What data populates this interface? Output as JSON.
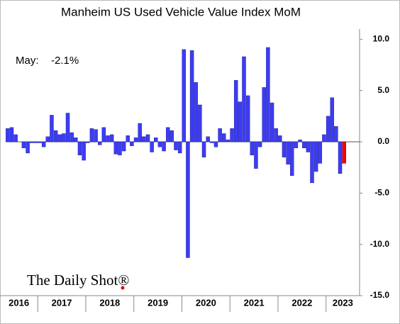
{
  "chart_data": {
    "type": "bar",
    "title": "Manheim US Used Vehicle Value Index MoM",
    "annotation_label": "May:",
    "annotation_value": "-2.1%",
    "logo": "The Daily Shot®",
    "color": "#3c3cf5",
    "highlight_color": "#ff0000",
    "highlight_index": 84,
    "categories": [
      "2016",
      null,
      null,
      null,
      null,
      null,
      null,
      null,
      "2017",
      null,
      null,
      null,
      null,
      null,
      null,
      null,
      null,
      null,
      null,
      null,
      "2018",
      null,
      null,
      null,
      null,
      null,
      null,
      null,
      null,
      null,
      null,
      null,
      "2019",
      null,
      null,
      null,
      null,
      null,
      null,
      null,
      null,
      null,
      null,
      null,
      "2020",
      null,
      null,
      null,
      null,
      null,
      null,
      null,
      null,
      null,
      null,
      null,
      "2021",
      null,
      null,
      null,
      null,
      null,
      null,
      null,
      null,
      null,
      null,
      null,
      "2022",
      null,
      null,
      null,
      null,
      null,
      null,
      null,
      null,
      null,
      null,
      null,
      "2023",
      null,
      null,
      null,
      null
    ],
    "values": [
      1.3,
      1.4,
      0.7,
      0.0,
      -0.6,
      -1.1,
      -0.1,
      -0.1,
      -0.1,
      -0.5,
      0.5,
      2.6,
      1.1,
      0.7,
      0.8,
      2.8,
      0.9,
      0.4,
      -1.3,
      -1.8,
      -0.1,
      1.3,
      1.2,
      -0.3,
      1.4,
      0.6,
      0.7,
      -1.2,
      -1.3,
      -0.9,
      0.6,
      -0.4,
      0.4,
      1.8,
      0.5,
      0.7,
      -1.0,
      0.4,
      -0.5,
      -0.9,
      1.4,
      1.1,
      -0.8,
      -1.1,
      9.0,
      -11.3,
      8.9,
      5.8,
      3.6,
      -1.5,
      0.5,
      -0.1,
      -0.5,
      1.3,
      0.8,
      0.2,
      1.3,
      6.0,
      3.9,
      8.3,
      4.5,
      -1.3,
      -2.6,
      -0.5,
      5.3,
      9.2,
      3.8,
      1.3,
      0.6,
      -1.5,
      -2.2,
      -3.3,
      -0.6,
      0.2,
      -0.6,
      -1.0,
      -4.0,
      -2.9,
      -2.1,
      0.7,
      2.5,
      4.3,
      1.5,
      -3.1,
      -2.1
    ],
    "ylim": [
      -15,
      11
    ],
    "yticks": [
      {
        "value": 10,
        "label": "10.0"
      },
      {
        "value": 5,
        "label": "5.0"
      },
      {
        "value": 0,
        "label": "0.0"
      },
      {
        "value": -5,
        "label": "-5.0"
      },
      {
        "value": -10,
        "label": "-10.0"
      },
      {
        "value": -15,
        "label": "-15.0"
      }
    ]
  }
}
